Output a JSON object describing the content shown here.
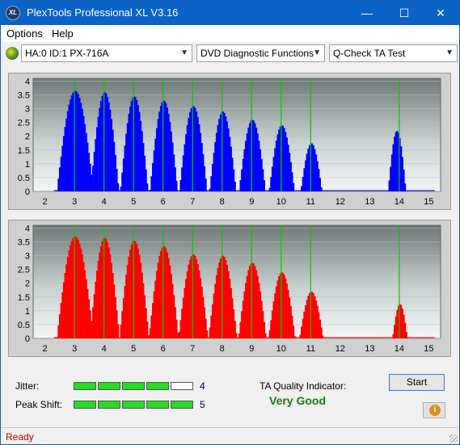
{
  "window": {
    "title": "PlexTools Professional XL V3.16",
    "icon_text": "XL"
  },
  "menu": {
    "options": "Options",
    "help": "Help"
  },
  "toolbar": {
    "drive": "HA:0 ID:1  PX-716A",
    "function": "DVD Diagnostic Functions",
    "test": "Q-Check TA Test"
  },
  "chart_data": [
    {
      "type": "bar",
      "title": "",
      "color": "#0000ff",
      "x_ticks": [
        "2",
        "3",
        "4",
        "5",
        "6",
        "7",
        "8",
        "9",
        "10",
        "11",
        "12",
        "13",
        "14",
        "15"
      ],
      "y_ticks": [
        "0",
        "0.5",
        "1",
        "1.5",
        "2",
        "2.5",
        "3",
        "3.5",
        "4"
      ],
      "xlim": [
        1.6,
        15.4
      ],
      "ylim": [
        0,
        4.1
      ],
      "marker_lines": [
        3,
        4,
        5,
        6,
        7,
        8,
        9,
        10,
        11,
        14
      ],
      "peaks": [
        {
          "center": 3.0,
          "height": 3.65,
          "width": 0.62
        },
        {
          "center": 4.0,
          "height": 3.6,
          "width": 0.48
        },
        {
          "center": 5.0,
          "height": 3.45,
          "width": 0.47
        },
        {
          "center": 6.0,
          "height": 3.3,
          "width": 0.47
        },
        {
          "center": 7.0,
          "height": 3.1,
          "width": 0.47
        },
        {
          "center": 8.0,
          "height": 2.9,
          "width": 0.45
        },
        {
          "center": 9.0,
          "height": 2.6,
          "width": 0.45
        },
        {
          "center": 10.0,
          "height": 2.4,
          "width": 0.43
        },
        {
          "center": 11.0,
          "height": 1.75,
          "width": 0.36
        },
        {
          "center": 13.9,
          "height": 2.2,
          "width": 0.3
        }
      ]
    },
    {
      "type": "bar",
      "title": "",
      "color": "#ff0000",
      "x_ticks": [
        "2",
        "3",
        "4",
        "5",
        "6",
        "7",
        "8",
        "9",
        "10",
        "11",
        "12",
        "13",
        "14",
        "15"
      ],
      "y_ticks": [
        "0",
        "0.5",
        "1",
        "1.5",
        "2",
        "2.5",
        "3",
        "3.5",
        "4"
      ],
      "xlim": [
        1.6,
        15.4
      ],
      "ylim": [
        0,
        4.1
      ],
      "marker_lines": [
        3,
        4,
        5,
        6,
        7,
        8,
        9,
        10,
        11,
        14
      ],
      "peaks": [
        {
          "center": 3.0,
          "height": 3.7,
          "width": 0.62
        },
        {
          "center": 4.0,
          "height": 3.65,
          "width": 0.5
        },
        {
          "center": 5.0,
          "height": 3.55,
          "width": 0.5
        },
        {
          "center": 6.0,
          "height": 3.35,
          "width": 0.5
        },
        {
          "center": 7.0,
          "height": 3.05,
          "width": 0.5
        },
        {
          "center": 8.0,
          "height": 3.0,
          "width": 0.48
        },
        {
          "center": 9.0,
          "height": 2.75,
          "width": 0.47
        },
        {
          "center": 10.0,
          "height": 2.4,
          "width": 0.45
        },
        {
          "center": 11.0,
          "height": 1.7,
          "width": 0.4
        },
        {
          "center": 14.0,
          "height": 1.25,
          "width": 0.25
        }
      ]
    }
  ],
  "jitter": {
    "label": "Jitter:",
    "value": "4",
    "filled": 4,
    "total": 5
  },
  "peak_shift": {
    "label": "Peak Shift:",
    "value": "5",
    "filled": 5,
    "total": 5
  },
  "ta_quality": {
    "label": "TA Quality Indicator:",
    "value": "Very Good"
  },
  "start_label": "Start",
  "info_icon": "i",
  "status": "Ready",
  "colors": {
    "gauge_on": "#22dd22",
    "gauge_off": "#ffffff",
    "marker": "#00cc00"
  }
}
